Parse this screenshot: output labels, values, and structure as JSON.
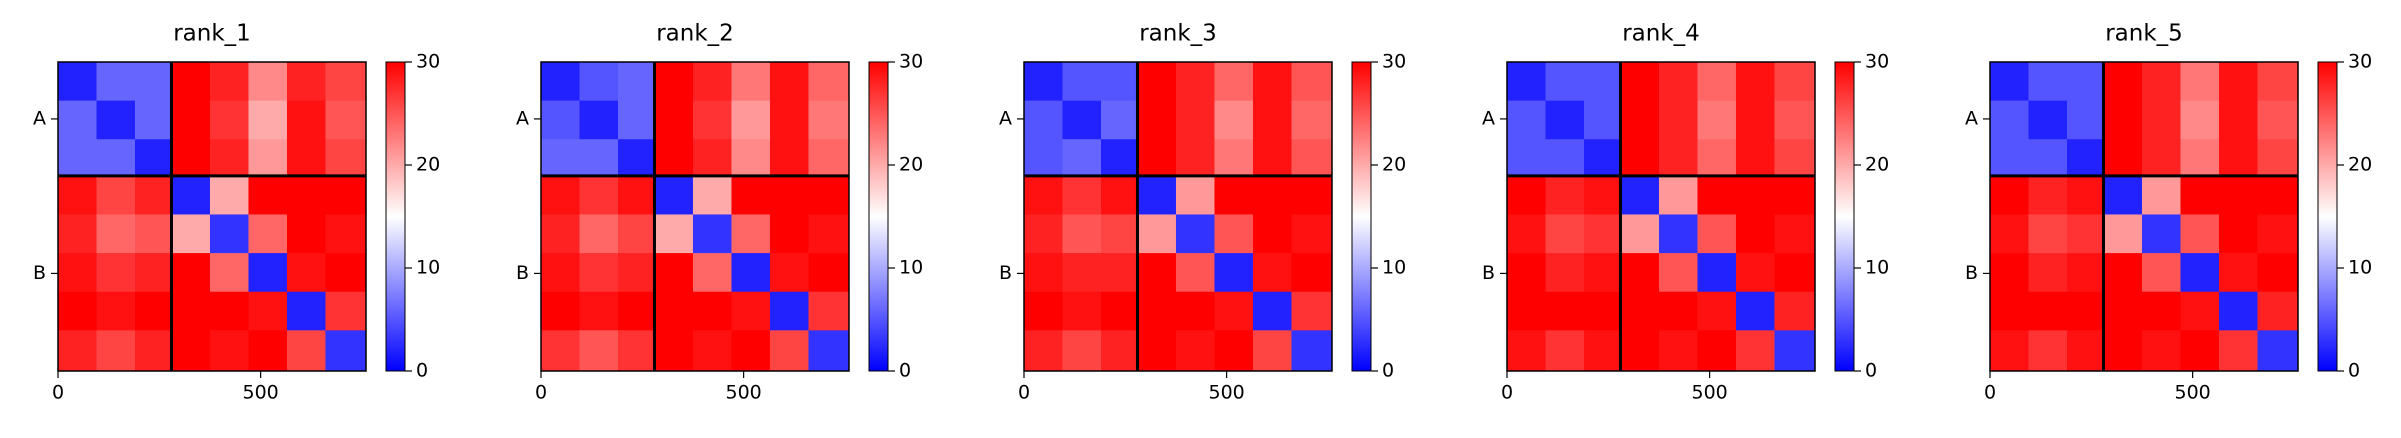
{
  "chart_data": [
    {
      "type": "heatmap",
      "title": "rank_1",
      "xbins": [
        0,
        95,
        190,
        280,
        375,
        470,
        565,
        660,
        760
      ],
      "xlim": [
        0,
        760
      ],
      "ylim": [
        760,
        0
      ],
      "xticks": [
        0,
        500
      ],
      "yticks": [
        {
          "value": 140,
          "label": "A"
        },
        {
          "value": 520,
          "label": "B"
        }
      ],
      "chain_breaks": [
        280
      ],
      "clim": [
        0,
        30
      ],
      "cticks": [
        0,
        10,
        20,
        30
      ],
      "colors": [
        "#0000ff",
        "#ffffff",
        "#ff0000"
      ],
      "z": [
        [
          2,
          6,
          6,
          30,
          28,
          22,
          28,
          26
        ],
        [
          6,
          2,
          6,
          30,
          27,
          20,
          29,
          25
        ],
        [
          6,
          6,
          2,
          30,
          28,
          21,
          29,
          26
        ],
        [
          29,
          26,
          28,
          2,
          20,
          30,
          30,
          30
        ],
        [
          28,
          24,
          25,
          20,
          3,
          24,
          30,
          29
        ],
        [
          29,
          27,
          28,
          30,
          24,
          2,
          29,
          30
        ],
        [
          30,
          29,
          30,
          30,
          30,
          29,
          2,
          27
        ],
        [
          28,
          26,
          28,
          30,
          29,
          30,
          26,
          3
        ]
      ]
    },
    {
      "type": "heatmap",
      "title": "rank_2",
      "xbins": [
        0,
        95,
        190,
        280,
        375,
        470,
        565,
        660,
        760
      ],
      "xlim": [
        0,
        760
      ],
      "ylim": [
        760,
        0
      ],
      "xticks": [
        0,
        500
      ],
      "yticks": [
        {
          "value": 140,
          "label": "A"
        },
        {
          "value": 520,
          "label": "B"
        }
      ],
      "chain_breaks": [
        280
      ],
      "clim": [
        0,
        30
      ],
      "cticks": [
        0,
        10,
        20,
        30
      ],
      "colors": [
        "#0000ff",
        "#ffffff",
        "#ff0000"
      ],
      "z": [
        [
          2,
          5,
          6,
          30,
          28,
          23,
          29,
          24
        ],
        [
          5,
          2,
          6,
          30,
          27,
          21,
          29,
          23
        ],
        [
          6,
          6,
          2,
          30,
          28,
          22,
          29,
          24
        ],
        [
          29,
          27,
          29,
          2,
          20,
          30,
          30,
          30
        ],
        [
          28,
          24,
          26,
          20,
          3,
          24,
          30,
          29
        ],
        [
          29,
          27,
          28,
          30,
          24,
          2,
          29,
          30
        ],
        [
          30,
          29,
          30,
          30,
          30,
          29,
          2,
          27
        ],
        [
          27,
          25,
          27,
          30,
          29,
          30,
          26,
          3
        ]
      ]
    },
    {
      "type": "heatmap",
      "title": "rank_3",
      "xbins": [
        0,
        95,
        190,
        280,
        375,
        470,
        565,
        660,
        760
      ],
      "xlim": [
        0,
        760
      ],
      "ylim": [
        760,
        0
      ],
      "xticks": [
        0,
        500
      ],
      "yticks": [
        {
          "value": 140,
          "label": "A"
        },
        {
          "value": 520,
          "label": "B"
        }
      ],
      "chain_breaks": [
        280
      ],
      "clim": [
        0,
        30
      ],
      "cticks": [
        0,
        10,
        20,
        30
      ],
      "colors": [
        "#0000ff",
        "#ffffff",
        "#ff0000"
      ],
      "z": [
        [
          2,
          5,
          5,
          30,
          28,
          24,
          29,
          25
        ],
        [
          5,
          2,
          6,
          30,
          28,
          22,
          29,
          24
        ],
        [
          5,
          6,
          2,
          30,
          28,
          23,
          29,
          25
        ],
        [
          29,
          27,
          29,
          2,
          21,
          30,
          30,
          30
        ],
        [
          28,
          25,
          26,
          21,
          3,
          25,
          30,
          29
        ],
        [
          29,
          28,
          28,
          30,
          25,
          2,
          29,
          30
        ],
        [
          30,
          29,
          30,
          30,
          30,
          29,
          2,
          27
        ],
        [
          28,
          26,
          28,
          30,
          29,
          30,
          26,
          3
        ]
      ]
    },
    {
      "type": "heatmap",
      "title": "rank_4",
      "xbins": [
        0,
        95,
        190,
        280,
        375,
        470,
        565,
        660,
        760
      ],
      "xlim": [
        0,
        760
      ],
      "ylim": [
        760,
        0
      ],
      "xticks": [
        0,
        500
      ],
      "yticks": [
        {
          "value": 140,
          "label": "A"
        },
        {
          "value": 520,
          "label": "B"
        }
      ],
      "chain_breaks": [
        280
      ],
      "clim": [
        0,
        30
      ],
      "cticks": [
        0,
        10,
        20,
        30
      ],
      "colors": [
        "#0000ff",
        "#ffffff",
        "#ff0000"
      ],
      "z": [
        [
          2,
          5,
          5,
          30,
          28,
          24,
          29,
          26
        ],
        [
          5,
          2,
          5,
          30,
          28,
          23,
          29,
          25
        ],
        [
          5,
          5,
          2,
          30,
          28,
          24,
          29,
          26
        ],
        [
          30,
          28,
          29,
          2,
          21,
          30,
          30,
          30
        ],
        [
          29,
          26,
          27,
          21,
          3,
          25,
          30,
          29
        ],
        [
          30,
          28,
          29,
          30,
          25,
          2,
          29,
          30
        ],
        [
          30,
          30,
          30,
          30,
          30,
          29,
          2,
          28
        ],
        [
          29,
          27,
          29,
          30,
          29,
          30,
          27,
          3
        ]
      ]
    },
    {
      "type": "heatmap",
      "title": "rank_5",
      "xbins": [
        0,
        95,
        190,
        280,
        375,
        470,
        565,
        660,
        760
      ],
      "xlim": [
        0,
        760
      ],
      "ylim": [
        760,
        0
      ],
      "xticks": [
        0,
        500
      ],
      "yticks": [
        {
          "value": 140,
          "label": "A"
        },
        {
          "value": 520,
          "label": "B"
        }
      ],
      "chain_breaks": [
        280
      ],
      "clim": [
        0,
        30
      ],
      "cticks": [
        0,
        10,
        20,
        30
      ],
      "colors": [
        "#0000ff",
        "#ffffff",
        "#ff0000"
      ],
      "z": [
        [
          2,
          5,
          5,
          30,
          28,
          23,
          29,
          26
        ],
        [
          5,
          2,
          5,
          30,
          28,
          22,
          29,
          25
        ],
        [
          5,
          5,
          2,
          30,
          28,
          23,
          29,
          26
        ],
        [
          30,
          28,
          29,
          2,
          21,
          30,
          30,
          30
        ],
        [
          29,
          26,
          27,
          21,
          3,
          25,
          30,
          29
        ],
        [
          30,
          28,
          29,
          30,
          25,
          2,
          29,
          30
        ],
        [
          30,
          30,
          30,
          30,
          30,
          29,
          2,
          28
        ],
        [
          29,
          27,
          29,
          30,
          29,
          30,
          27,
          3
        ]
      ]
    }
  ]
}
